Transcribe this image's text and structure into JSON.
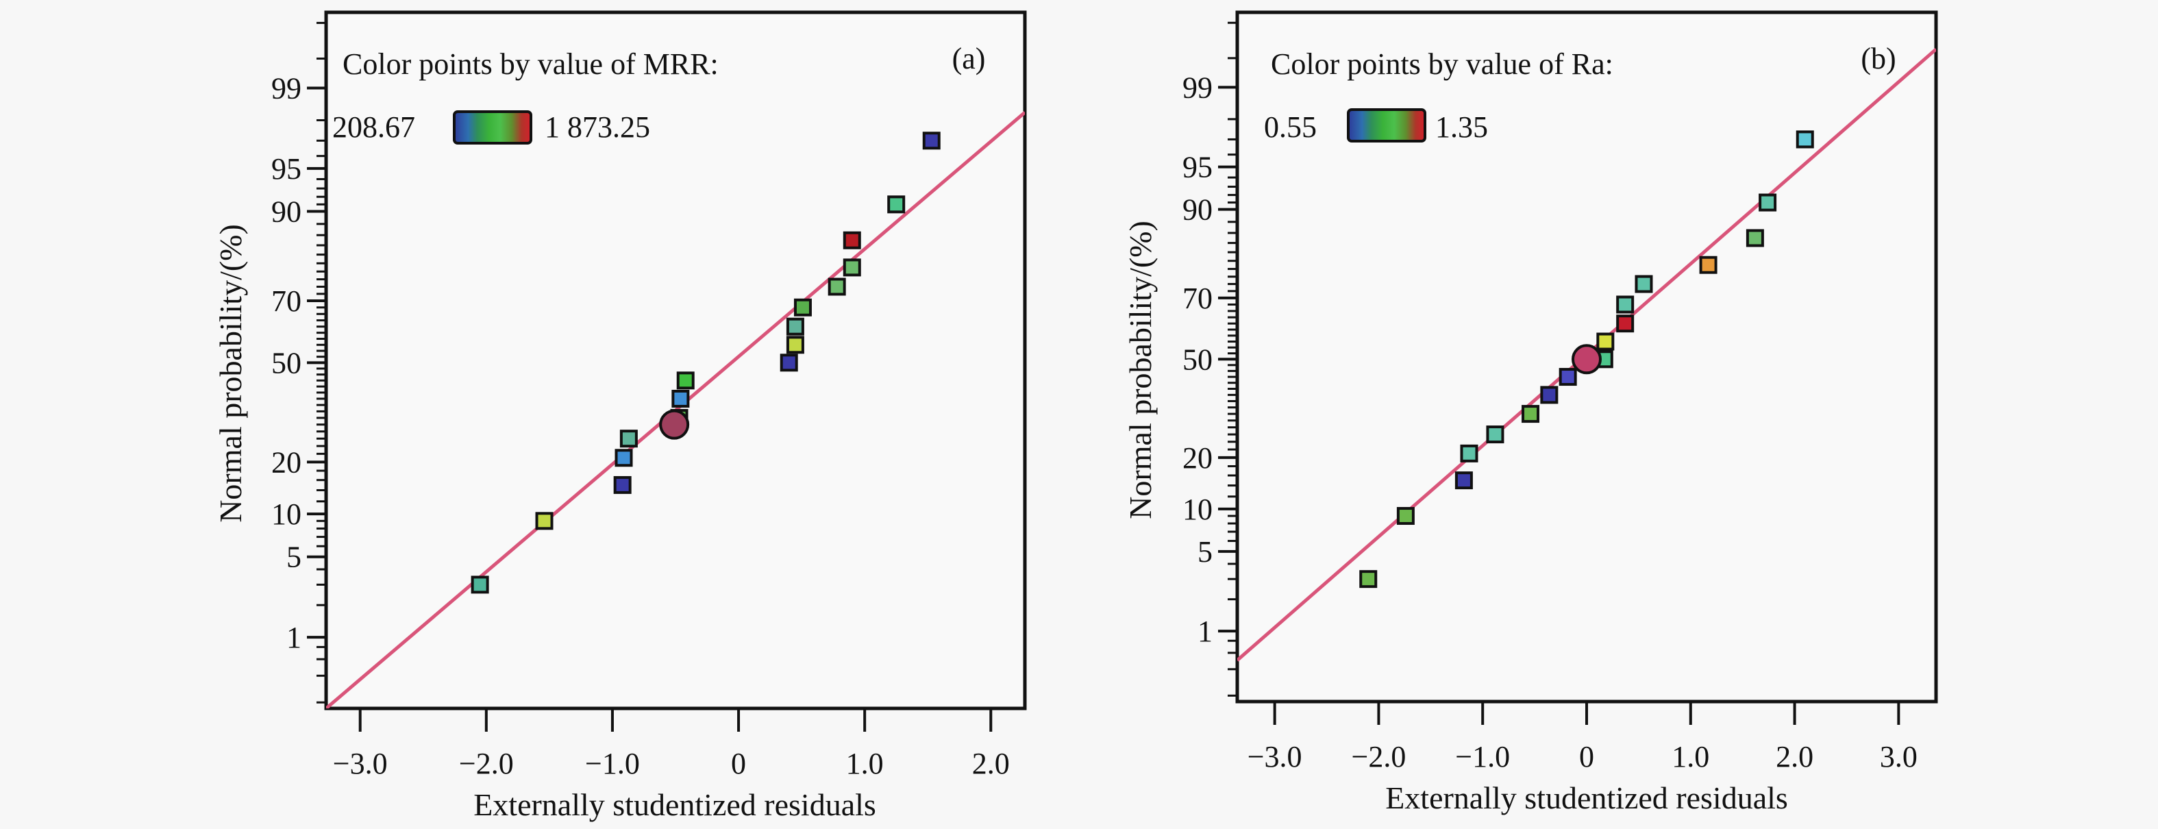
{
  "chart_data": [
    {
      "type": "scatter",
      "panel_label": "(a)",
      "title": "",
      "xlabel": "Externally studentized residuals",
      "ylabel": "Normal probability/(%)",
      "xlim": [
        -3.27,
        2.27
      ],
      "ylim_probability": [
        0.17,
        99.85
      ],
      "y_scale": "normal-probability",
      "x_ticks": [
        -3.0,
        -2.0,
        -1.0,
        0,
        1.0,
        2.0
      ],
      "x_tick_labels": [
        "−3.0",
        "−2.0",
        "−1.0",
        "0",
        "1.0",
        "2.0"
      ],
      "y_ticks": [
        1,
        5,
        10,
        20,
        50,
        70,
        90,
        95,
        99
      ],
      "y_tick_labels": [
        "1",
        "5",
        "10",
        "20",
        "50",
        "70",
        "90",
        "95",
        "99"
      ],
      "legend": {
        "title": "Color points by value of MRR:",
        "min_label": "208.67",
        "max_label": "1 873.25",
        "min_color": "#3b3b8f",
        "max_color": "#b0204a",
        "placement": "top-left"
      },
      "fit_line": {
        "color": "#d9557a",
        "from": {
          "x": -3.27,
          "p": 0.17
        },
        "to": {
          "x": 2.27,
          "p": 98.3
        }
      },
      "points": [
        {
          "x": -2.05,
          "p": 3,
          "color": "#4fb59a",
          "marker": "square"
        },
        {
          "x": -1.54,
          "p": 9,
          "color": "#c2d845",
          "marker": "square"
        },
        {
          "x": -0.92,
          "p": 15,
          "color": "#3a3aa8",
          "marker": "square"
        },
        {
          "x": -0.91,
          "p": 21,
          "color": "#3f8fd6",
          "marker": "square"
        },
        {
          "x": -0.87,
          "p": 26,
          "color": "#5fb39a",
          "marker": "square"
        },
        {
          "x": -0.47,
          "p": 32,
          "color": "#58b04c",
          "marker": "square"
        },
        {
          "x": -0.46,
          "p": 38,
          "color": "#3f8fd6",
          "marker": "square"
        },
        {
          "x": -0.42,
          "p": 44,
          "color": "#3fbf3f",
          "marker": "square"
        },
        {
          "x": 0.4,
          "p": 50,
          "color": "#3a3aa8",
          "marker": "square"
        },
        {
          "x": 0.45,
          "p": 56,
          "color": "#c2d845",
          "marker": "square"
        },
        {
          "x": 0.45,
          "p": 62,
          "color": "#5fb39a",
          "marker": "square"
        },
        {
          "x": 0.51,
          "p": 68,
          "color": "#58b04c",
          "marker": "square"
        },
        {
          "x": 0.78,
          "p": 74,
          "color": "#6cbb6c",
          "marker": "square"
        },
        {
          "x": 0.9,
          "p": 79,
          "color": "#6cbb6c",
          "marker": "square"
        },
        {
          "x": 0.9,
          "p": 85,
          "color": "#b81c24",
          "marker": "square"
        },
        {
          "x": 1.25,
          "p": 91,
          "color": "#4cc48a",
          "marker": "square"
        },
        {
          "x": 1.53,
          "p": 97,
          "color": "#3a3aa8",
          "marker": "square"
        },
        {
          "x": -0.51,
          "p": 30,
          "color": "#a0405e",
          "marker": "circle"
        }
      ]
    },
    {
      "type": "scatter",
      "panel_label": "(b)",
      "title": "",
      "xlabel": "Externally studentized residuals",
      "ylabel": "Normal probability/(%)",
      "xlim": [
        -3.36,
        3.36
      ],
      "ylim_probability": [
        0.17,
        99.85
      ],
      "y_scale": "normal-probability",
      "x_ticks": [
        -3.0,
        -2.0,
        -1.0,
        0,
        1.0,
        2.0,
        3.0
      ],
      "x_tick_labels": [
        "−3.0",
        "−2.0",
        "−1.0",
        "0",
        "1.0",
        "2.0",
        "3.0"
      ],
      "y_ticks": [
        1,
        5,
        10,
        20,
        50,
        70,
        90,
        95,
        99
      ],
      "y_tick_labels": [
        "1",
        "5",
        "10",
        "20",
        "50",
        "70",
        "90",
        "95",
        "99"
      ],
      "legend": {
        "title": "Color points by value of Ra:",
        "min_label": "0.55",
        "max_label": "1.35",
        "min_color": "#3b3b8f",
        "max_color": "#b0204a",
        "placement": "top-left"
      },
      "fit_line": {
        "color": "#d9557a",
        "from": {
          "x": -3.36,
          "p": 0.5
        },
        "to": {
          "x": 3.36,
          "p": 99.6
        }
      },
      "points": [
        {
          "x": -2.1,
          "p": 3,
          "color": "#6cb84c",
          "marker": "square"
        },
        {
          "x": -1.74,
          "p": 9,
          "color": "#6cb84c",
          "marker": "square"
        },
        {
          "x": -1.18,
          "p": 15,
          "color": "#3a3aa8",
          "marker": "square"
        },
        {
          "x": -1.13,
          "p": 21,
          "color": "#5fc3a8",
          "marker": "square"
        },
        {
          "x": -0.88,
          "p": 26,
          "color": "#5fc3a8",
          "marker": "square"
        },
        {
          "x": -0.54,
          "p": 32,
          "color": "#6cb84c",
          "marker": "square"
        },
        {
          "x": -0.36,
          "p": 38,
          "color": "#3a3aa8",
          "marker": "square"
        },
        {
          "x": -0.18,
          "p": 44,
          "color": "#4a4ac0",
          "marker": "square"
        },
        {
          "x": 0.17,
          "p": 50,
          "color": "#4cc48a",
          "marker": "square"
        },
        {
          "x": 0.18,
          "p": 56,
          "color": "#d8e040",
          "marker": "square"
        },
        {
          "x": 0.37,
          "p": 62,
          "color": "#c41c2c",
          "marker": "square"
        },
        {
          "x": 0.37,
          "p": 68,
          "color": "#5fc3a8",
          "marker": "square"
        },
        {
          "x": 0.55,
          "p": 74,
          "color": "#5fc3a8",
          "marker": "square"
        },
        {
          "x": 1.17,
          "p": 79,
          "color": "#e89a3a",
          "marker": "square"
        },
        {
          "x": 1.62,
          "p": 85,
          "color": "#6cbb6c",
          "marker": "square"
        },
        {
          "x": 1.74,
          "p": 91,
          "color": "#5fc3a8",
          "marker": "square"
        },
        {
          "x": 2.1,
          "p": 97,
          "color": "#5fc8d8",
          "marker": "square"
        },
        {
          "x": 0.0,
          "p": 50,
          "color": "#c0406a",
          "marker": "circle"
        }
      ]
    }
  ]
}
